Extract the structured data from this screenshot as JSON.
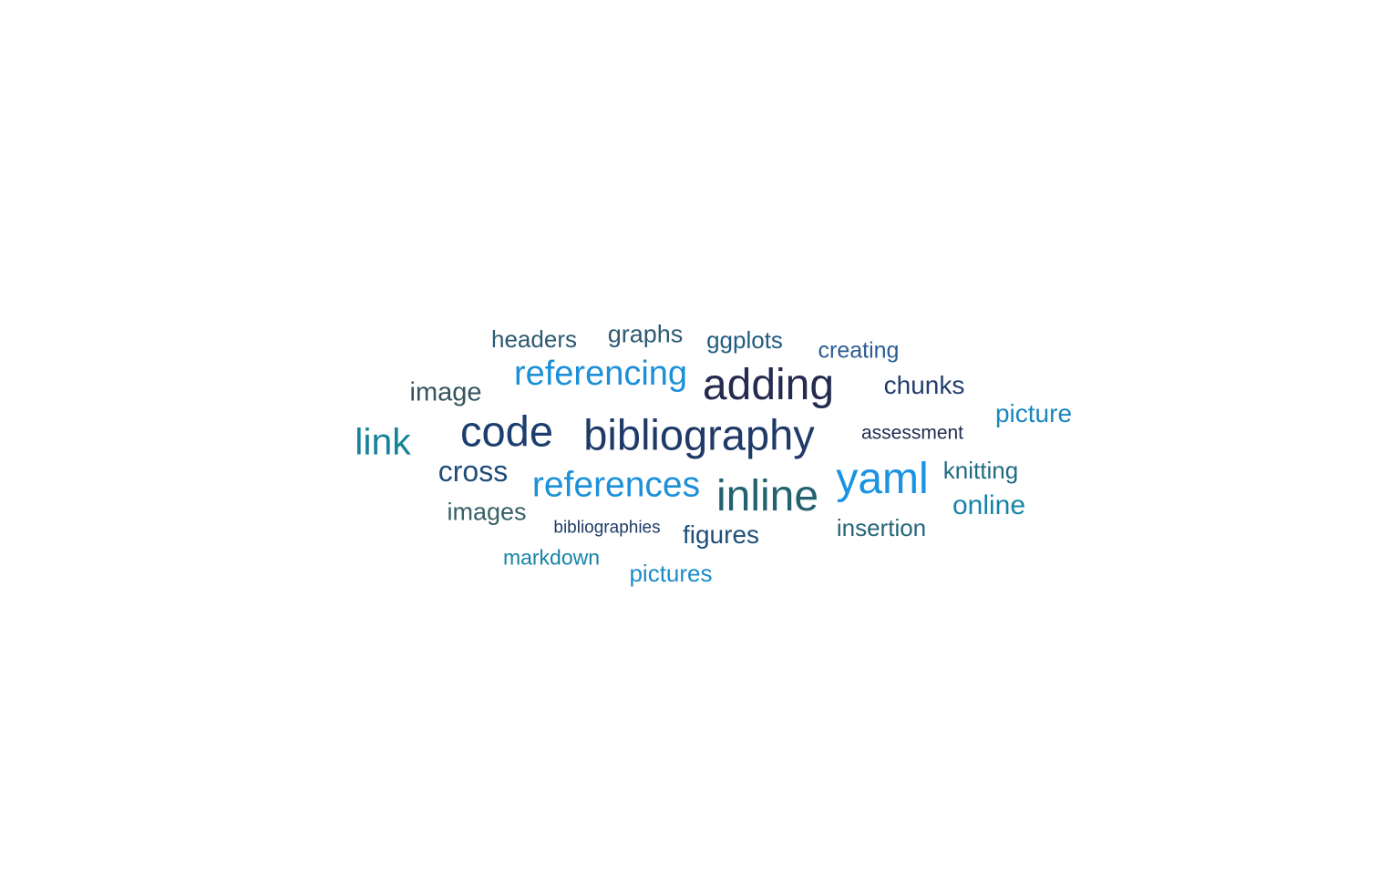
{
  "words": [
    {
      "text": "headers",
      "color": "#2c5a72"
    },
    {
      "text": "graphs",
      "color": "#2c5a72"
    },
    {
      "text": "ggplots",
      "color": "#215d82"
    },
    {
      "text": "creating",
      "color": "#2a5d95"
    },
    {
      "text": "referencing",
      "color": "#1b8fd8"
    },
    {
      "text": "adding",
      "color": "#252b4f"
    },
    {
      "text": "image",
      "color": "#35545d"
    },
    {
      "text": "chunks",
      "color": "#233d6e"
    },
    {
      "text": "picture",
      "color": "#1a87c0"
    },
    {
      "text": "link",
      "color": "#15839a"
    },
    {
      "text": "code",
      "color": "#1c3e6e"
    },
    {
      "text": "bibliography",
      "color": "#1f3a68"
    },
    {
      "text": "assessment",
      "color": "#212d51"
    },
    {
      "text": "cross",
      "color": "#1f4d7a"
    },
    {
      "text": "references",
      "color": "#1d90d8"
    },
    {
      "text": "inline",
      "color": "#23616f"
    },
    {
      "text": "yaml",
      "color": "#1b93e3"
    },
    {
      "text": "knitting",
      "color": "#226b84"
    },
    {
      "text": "online",
      "color": "#1584a8"
    },
    {
      "text": "images",
      "color": "#356066"
    },
    {
      "text": "bibliographies",
      "color": "#1e3b66"
    },
    {
      "text": "figures",
      "color": "#1f4f78"
    },
    {
      "text": "insertion",
      "color": "#25657a"
    },
    {
      "text": "markdown",
      "color": "#1783a5"
    },
    {
      "text": "pictures",
      "color": "#1c8cc8"
    }
  ]
}
